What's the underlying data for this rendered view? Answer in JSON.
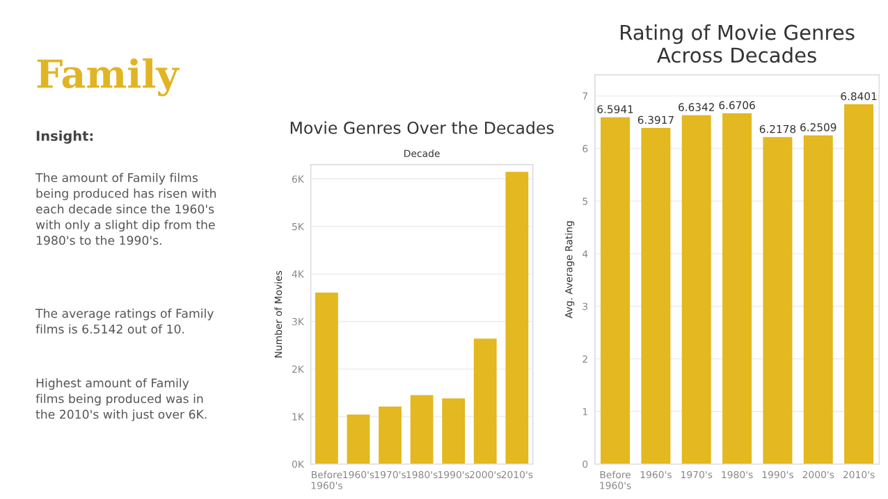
{
  "chart_data": [
    {
      "type": "other",
      "title": "Family",
      "subtitle": "Insight:",
      "color": "#e0b524",
      "annotations": [
        "The amount of Family films\nbeing produced has risen with\neach decade since the 1960's\nwith only a slight dip from the\n1980's to the 1990's.",
        "The average ratings of Family\nfilms is 6.5142 out of 10.",
        "Highest amount of Family\nfilms being produced was in\nthe 2010's with just over 6K."
      ]
    },
    {
      "type": "bar",
      "title": "Movie Genres Over the Decades",
      "xlabel": "Decade",
      "ylabel": "Number of Movies",
      "categories": [
        "Before\n1960's",
        "1960's",
        "1970's",
        "1980's",
        "1990's",
        "2000's",
        "2010's"
      ],
      "values": [
        3610,
        1040,
        1210,
        1450,
        1380,
        2640,
        6150
      ],
      "color": "#e3b820",
      "ylim": [
        0,
        6300
      ],
      "yticks": [
        {
          "value": 0,
          "label": "0K"
        },
        {
          "value": 1000,
          "label": "1K"
        },
        {
          "value": 2000,
          "label": "2K"
        },
        {
          "value": 3000,
          "label": "3K"
        },
        {
          "value": 4000,
          "label": "4K"
        },
        {
          "value": 5000,
          "label": "5K"
        },
        {
          "value": 6000,
          "label": "6K"
        }
      ],
      "grid": "y"
    },
    {
      "type": "bar",
      "title": "Rating of Movie Genres Across Decades",
      "ylabel": "Avg. Average Rating",
      "categories": [
        "Before\n1960's",
        "1960's",
        "1970's",
        "1980's",
        "1990's",
        "2000's",
        "2010's"
      ],
      "values": [
        6.5941,
        6.3917,
        6.6342,
        6.6706,
        6.2178,
        6.2509,
        6.8401
      ],
      "color": "#e3b820",
      "ylim": [
        0,
        7.4
      ],
      "yticks": [
        0,
        1,
        2,
        3,
        4,
        5,
        6,
        7
      ],
      "grid": "y",
      "data_labels": true
    }
  ]
}
